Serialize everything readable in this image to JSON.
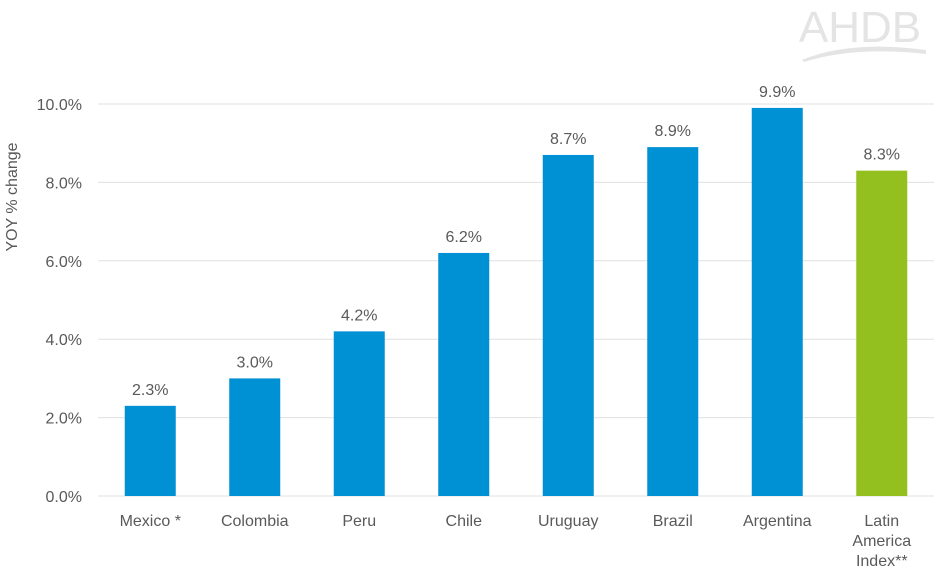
{
  "logo": {
    "text": "AHDB"
  },
  "chart_data": {
    "type": "bar",
    "title": "",
    "xlabel": "",
    "ylabel": "YOY % change",
    "ylim": [
      0,
      10
    ],
    "yticks": [
      "0.0%",
      "2.0%",
      "4.0%",
      "6.0%",
      "8.0%",
      "10.0%"
    ],
    "grid": true,
    "legend": null,
    "categories": [
      "Mexico *",
      "Colombia",
      "Peru",
      "Chile",
      "Uruguay",
      "Brazil",
      "Argentina",
      "Latin America Index**"
    ],
    "category_lines": [
      [
        "Mexico *"
      ],
      [
        "Colombia"
      ],
      [
        "Peru"
      ],
      [
        "Chile"
      ],
      [
        "Uruguay"
      ],
      [
        "Brazil"
      ],
      [
        "Argentina"
      ],
      [
        "Latin",
        "America",
        "Index**"
      ]
    ],
    "values": [
      2.3,
      3.0,
      4.2,
      6.2,
      8.7,
      8.9,
      9.9,
      8.3
    ],
    "data_labels": [
      "2.3%",
      "3.0%",
      "4.2%",
      "6.2%",
      "8.7%",
      "8.9%",
      "9.9%",
      "8.3%"
    ],
    "colors": [
      "#0090d4",
      "#0090d4",
      "#0090d4",
      "#0090d4",
      "#0090d4",
      "#0090d4",
      "#0090d4",
      "#93c01f"
    ]
  },
  "style": {
    "gridColor": "#e0e0e0",
    "textColor": "#595959",
    "logoColor": "#e4e4e4"
  }
}
